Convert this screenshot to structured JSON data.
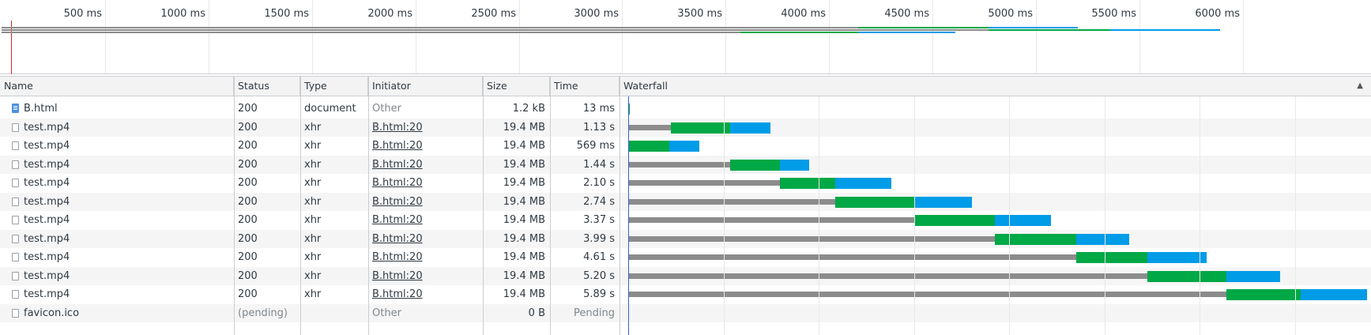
{
  "overview": {
    "tick_labels": [
      "500 ms",
      "1000 ms",
      "1500 ms",
      "2000 ms",
      "2500 ms",
      "3000 ms",
      "3500 ms",
      "4000 ms",
      "4500 ms",
      "5000 ms",
      "5500 ms",
      "6000 ms"
    ]
  },
  "columns": {
    "name": "Name",
    "status": "Status",
    "type": "Type",
    "initiator": "Initiator",
    "size": "Size",
    "time": "Time",
    "waterfall": "Waterfall"
  },
  "colors": {
    "waiting": "#8c8c8c",
    "ttfb": "#00a846",
    "download": "#009ce8",
    "start_marker": "#d22222"
  },
  "rows": [
    {
      "name": "B.html",
      "status": "200",
      "type": "document",
      "initiator": "Other",
      "size": "1.2 kB",
      "time": "13 ms",
      "icon": "document-icon",
      "timing_ms": {
        "wait": [
          0,
          0
        ],
        "ttfb": [
          0,
          13
        ],
        "download": [
          13,
          13
        ]
      }
    },
    {
      "name": "test.mp4",
      "status": "200",
      "type": "xhr",
      "initiator": "B.html:20",
      "size": "19.4 MB",
      "time": "1.13 s",
      "icon": "file-icon",
      "timing_ms": {
        "wait": [
          0,
          340
        ],
        "ttfb": [
          340,
          810
        ],
        "download": [
          810,
          1130
        ]
      }
    },
    {
      "name": "test.mp4",
      "status": "200",
      "type": "xhr",
      "initiator": "B.html:20",
      "size": "19.4 MB",
      "time": "569 ms",
      "icon": "file-icon",
      "timing_ms": {
        "wait": [
          0,
          0
        ],
        "ttfb": [
          0,
          330
        ],
        "download": [
          330,
          569
        ]
      }
    },
    {
      "name": "test.mp4",
      "status": "200",
      "type": "xhr",
      "initiator": "B.html:20",
      "size": "19.4 MB",
      "time": "1.44 s",
      "icon": "file-icon",
      "timing_ms": {
        "wait": [
          0,
          810
        ],
        "ttfb": [
          810,
          1210
        ],
        "download": [
          1210,
          1440
        ]
      }
    },
    {
      "name": "test.mp4",
      "status": "200",
      "type": "xhr",
      "initiator": "B.html:20",
      "size": "19.4 MB",
      "time": "2.10 s",
      "icon": "file-icon",
      "timing_ms": {
        "wait": [
          0,
          1210
        ],
        "ttfb": [
          1210,
          1650
        ],
        "download": [
          1650,
          2100
        ]
      }
    },
    {
      "name": "test.mp4",
      "status": "200",
      "type": "xhr",
      "initiator": "B.html:20",
      "size": "19.4 MB",
      "time": "2.74 s",
      "icon": "file-icon",
      "timing_ms": {
        "wait": [
          0,
          1650
        ],
        "ttfb": [
          1650,
          2280
        ],
        "download": [
          2280,
          2740
        ]
      }
    },
    {
      "name": "test.mp4",
      "status": "200",
      "type": "xhr",
      "initiator": "B.html:20",
      "size": "19.4 MB",
      "time": "3.37 s",
      "icon": "file-icon",
      "timing_ms": {
        "wait": [
          0,
          2280
        ],
        "ttfb": [
          2280,
          2920
        ],
        "download": [
          2920,
          3370
        ]
      }
    },
    {
      "name": "test.mp4",
      "status": "200",
      "type": "xhr",
      "initiator": "B.html:20",
      "size": "19.4 MB",
      "time": "3.99 s",
      "icon": "file-icon",
      "timing_ms": {
        "wait": [
          0,
          2920
        ],
        "ttfb": [
          2920,
          3570
        ],
        "download": [
          3570,
          3990
        ]
      }
    },
    {
      "name": "test.mp4",
      "status": "200",
      "type": "xhr",
      "initiator": "B.html:20",
      "size": "19.4 MB",
      "time": "4.61 s",
      "icon": "file-icon",
      "timing_ms": {
        "wait": [
          0,
          3570
        ],
        "ttfb": [
          3570,
          4140
        ],
        "download": [
          4140,
          4610
        ]
      }
    },
    {
      "name": "test.mp4",
      "status": "200",
      "type": "xhr",
      "initiator": "B.html:20",
      "size": "19.4 MB",
      "time": "5.20 s",
      "icon": "file-icon",
      "timing_ms": {
        "wait": [
          0,
          4140
        ],
        "ttfb": [
          4140,
          4770
        ],
        "download": [
          4770,
          5200
        ]
      }
    },
    {
      "name": "test.mp4",
      "status": "200",
      "type": "xhr",
      "initiator": "B.html:20",
      "size": "19.4 MB",
      "time": "5.89 s",
      "icon": "file-icon",
      "timing_ms": {
        "wait": [
          0,
          4770
        ],
        "ttfb": [
          4770,
          5360
        ],
        "download": [
          5360,
          5890
        ]
      }
    },
    {
      "name": "favicon.ico",
      "status": "(pending)",
      "type": "",
      "initiator": "Other",
      "size": "0 B",
      "time": "Pending",
      "icon": "file-icon",
      "timing_ms": null
    }
  ]
}
